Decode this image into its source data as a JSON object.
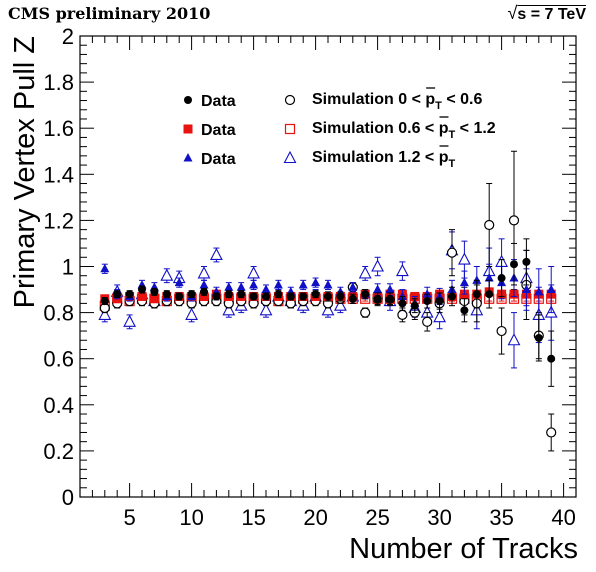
{
  "header": {
    "experiment_label": "CMS preliminary 2010",
    "energy_prefix": "s = 7 TeV",
    "sqrt_symbol": "√"
  },
  "colors": {
    "data_black": "#000000",
    "data_red": "#e8120e",
    "data_blue": "#1010c8",
    "sim_black": "#000000",
    "sim_red": "#e8120e",
    "sim_blue": "#1010c8"
  },
  "chart_data": {
    "type": "scatter",
    "title": "",
    "xlabel": "Number of Tracks",
    "ylabel": "Primary Vertex Pull Z",
    "xlim": [
      1,
      41
    ],
    "ylim": [
      0,
      2
    ],
    "x_ticks": [
      5,
      10,
      15,
      20,
      25,
      30,
      35,
      40
    ],
    "y_ticks": [
      0,
      0.2,
      0.4,
      0.6,
      0.8,
      1,
      1.2,
      1.4,
      1.6,
      1.8,
      2
    ],
    "y_tick_labels": [
      "0",
      "0.2",
      "0.4",
      "0.6",
      "0.8",
      "1",
      "1.2",
      "1.4",
      "1.6",
      "1.8",
      "2"
    ],
    "legend_position": "top-center",
    "series": [
      {
        "name": "Data",
        "marker": "filled-circle",
        "color_key": "data_black",
        "x": [
          3,
          4,
          5,
          6,
          7,
          8,
          9,
          10,
          11,
          12,
          13,
          14,
          15,
          16,
          17,
          18,
          19,
          20,
          21,
          22,
          23,
          24,
          25,
          26,
          27,
          28,
          29,
          30,
          31,
          32,
          33,
          34,
          35,
          36,
          37,
          38,
          39
        ],
        "y": [
          0.85,
          0.88,
          0.88,
          0.9,
          0.89,
          0.88,
          0.87,
          0.88,
          0.89,
          0.87,
          0.88,
          0.88,
          0.87,
          0.87,
          0.88,
          0.87,
          0.87,
          0.88,
          0.87,
          0.87,
          0.86,
          0.88,
          0.86,
          0.86,
          0.84,
          0.83,
          0.85,
          0.85,
          0.87,
          0.81,
          0.88,
          0.88,
          0.95,
          1.01,
          1.02,
          0.69,
          0.6
        ],
        "err": [
          0.015,
          0.015,
          0.015,
          0.015,
          0.015,
          0.015,
          0.015,
          0.015,
          0.015,
          0.015,
          0.015,
          0.015,
          0.015,
          0.015,
          0.015,
          0.015,
          0.015,
          0.015,
          0.02,
          0.02,
          0.02,
          0.02,
          0.025,
          0.025,
          0.03,
          0.03,
          0.03,
          0.035,
          0.04,
          0.05,
          0.06,
          0.06,
          0.08,
          0.09,
          0.1,
          0.1,
          0.12
        ]
      },
      {
        "name": "Data",
        "marker": "filled-square",
        "color_key": "data_red",
        "x": [
          3,
          4,
          5,
          6,
          7,
          8,
          9,
          10,
          11,
          12,
          13,
          14,
          15,
          16,
          17,
          18,
          19,
          20,
          21,
          22,
          23,
          24,
          25,
          26,
          27,
          28,
          29,
          30,
          31,
          32,
          33,
          34,
          35,
          36,
          37,
          38,
          39
        ],
        "y": [
          0.86,
          0.86,
          0.87,
          0.87,
          0.86,
          0.87,
          0.87,
          0.87,
          0.87,
          0.88,
          0.87,
          0.87,
          0.87,
          0.87,
          0.87,
          0.87,
          0.87,
          0.87,
          0.87,
          0.87,
          0.87,
          0.88,
          0.87,
          0.88,
          0.88,
          0.87,
          0.87,
          0.88,
          0.87,
          0.88,
          0.88,
          0.89,
          0.88,
          0.88,
          0.88,
          0.88,
          0.88
        ],
        "err": [
          0.01,
          0.01,
          0.01,
          0.01,
          0.01,
          0.01,
          0.01,
          0.01,
          0.01,
          0.01,
          0.01,
          0.01,
          0.01,
          0.01,
          0.01,
          0.01,
          0.01,
          0.01,
          0.01,
          0.01,
          0.01,
          0.01,
          0.01,
          0.01,
          0.01,
          0.01,
          0.01,
          0.01,
          0.01,
          0.01,
          0.01,
          0.01,
          0.01,
          0.01,
          0.01,
          0.01,
          0.01
        ]
      },
      {
        "name": "Data",
        "marker": "filled-triangle",
        "color_key": "data_blue",
        "x": [
          3,
          4,
          5,
          6,
          7,
          8,
          9,
          10,
          11,
          12,
          13,
          14,
          15,
          16,
          17,
          18,
          19,
          20,
          21,
          22,
          23,
          24,
          25,
          26,
          27,
          28,
          29,
          30,
          31,
          32,
          33,
          34,
          35,
          36,
          37,
          38,
          39
        ],
        "y": [
          0.99,
          0.88,
          0.87,
          0.92,
          0.91,
          0.87,
          0.93,
          0.87,
          0.92,
          0.89,
          0.91,
          0.91,
          0.92,
          0.9,
          0.92,
          0.89,
          0.92,
          0.93,
          0.92,
          0.89,
          0.91,
          0.88,
          0.9,
          0.9,
          0.87,
          0.84,
          0.88,
          0.87,
          0.9,
          0.93,
          0.94,
          0.95,
          0.93,
          0.95,
          0.9,
          0.89,
          0.9
        ],
        "err": [
          0.02,
          0.02,
          0.02,
          0.02,
          0.02,
          0.02,
          0.02,
          0.02,
          0.02,
          0.02,
          0.02,
          0.02,
          0.02,
          0.02,
          0.02,
          0.02,
          0.02,
          0.02,
          0.02,
          0.02,
          0.02,
          0.02,
          0.025,
          0.025,
          0.03,
          0.03,
          0.03,
          0.035,
          0.04,
          0.05,
          0.06,
          0.06,
          0.07,
          0.08,
          0.09,
          0.1,
          0.1
        ]
      },
      {
        "name": "Simulation 0 < p̄T < 0.6",
        "marker": "open-circle",
        "color_key": "sim_black",
        "x": [
          3,
          4,
          5,
          6,
          7,
          8,
          9,
          10,
          11,
          12,
          13,
          14,
          15,
          16,
          17,
          18,
          19,
          20,
          21,
          22,
          23,
          24,
          25,
          26,
          27,
          28,
          29,
          30,
          31,
          32,
          33,
          34,
          35,
          36,
          37,
          38,
          39
        ],
        "y": [
          0.82,
          0.84,
          0.85,
          0.85,
          0.84,
          0.85,
          0.85,
          0.84,
          0.85,
          0.85,
          0.84,
          0.85,
          0.84,
          0.85,
          0.85,
          0.84,
          0.85,
          0.85,
          0.84,
          0.86,
          0.91,
          0.8,
          0.86,
          0.86,
          0.79,
          0.8,
          0.76,
          0.84,
          1.06,
          0.85,
          0.84,
          1.18,
          0.72,
          1.2,
          0.92,
          0.7,
          0.28
        ],
        "err": [
          0.02,
          0.02,
          0.02,
          0.02,
          0.02,
          0.02,
          0.02,
          0.02,
          0.02,
          0.02,
          0.02,
          0.02,
          0.02,
          0.02,
          0.02,
          0.02,
          0.02,
          0.02,
          0.02,
          0.02,
          0.02,
          0.02,
          0.03,
          0.03,
          0.03,
          0.03,
          0.04,
          0.04,
          0.1,
          0.06,
          0.08,
          0.18,
          0.1,
          0.3,
          0.15,
          0.1,
          0.08
        ]
      },
      {
        "name": "Simulation 0.6 < p̄T < 1.2",
        "marker": "open-square",
        "color_key": "sim_red",
        "x": [
          3,
          4,
          5,
          6,
          7,
          8,
          9,
          10,
          11,
          12,
          13,
          14,
          15,
          16,
          17,
          18,
          19,
          20,
          21,
          22,
          23,
          24,
          25,
          26,
          27,
          28,
          29,
          30,
          31,
          32,
          33,
          34,
          35,
          36,
          37,
          38,
          39
        ],
        "y": [
          0.83,
          0.86,
          0.85,
          0.86,
          0.86,
          0.85,
          0.86,
          0.86,
          0.86,
          0.86,
          0.86,
          0.86,
          0.86,
          0.86,
          0.85,
          0.86,
          0.86,
          0.86,
          0.86,
          0.86,
          0.86,
          0.86,
          0.86,
          0.86,
          0.86,
          0.86,
          0.86,
          0.86,
          0.86,
          0.86,
          0.86,
          0.86,
          0.86,
          0.86,
          0.86,
          0.86,
          0.86
        ],
        "err": [
          0.01,
          0.01,
          0.01,
          0.01,
          0.01,
          0.01,
          0.01,
          0.01,
          0.01,
          0.01,
          0.01,
          0.01,
          0.01,
          0.01,
          0.01,
          0.01,
          0.01,
          0.01,
          0.01,
          0.01,
          0.01,
          0.01,
          0.01,
          0.01,
          0.01,
          0.01,
          0.01,
          0.01,
          0.01,
          0.01,
          0.01,
          0.01,
          0.01,
          0.01,
          0.01,
          0.01,
          0.01
        ]
      },
      {
        "name": "Simulation 1.2 < p̄T",
        "marker": "open-triangle",
        "color_key": "sim_blue",
        "x": [
          3,
          4,
          5,
          6,
          7,
          8,
          9,
          10,
          11,
          12,
          13,
          14,
          15,
          16,
          17,
          18,
          19,
          20,
          21,
          22,
          23,
          24,
          25,
          26,
          27,
          28,
          29,
          30,
          31,
          32,
          33,
          34,
          35,
          36,
          37,
          38,
          39
        ],
        "y": [
          0.79,
          0.89,
          0.76,
          0.88,
          0.85,
          0.96,
          0.95,
          0.79,
          0.97,
          1.05,
          0.81,
          0.83,
          0.97,
          0.81,
          0.87,
          0.85,
          0.83,
          0.87,
          0.81,
          0.83,
          0.87,
          0.97,
          1.0,
          0.85,
          0.98,
          0.82,
          0.8,
          0.78,
          1.07,
          1.03,
          0.81,
          0.98,
          1.02,
          0.68,
          0.95,
          0.79,
          0.8
        ],
        "err": [
          0.03,
          0.03,
          0.03,
          0.03,
          0.03,
          0.03,
          0.03,
          0.03,
          0.03,
          0.03,
          0.03,
          0.03,
          0.03,
          0.03,
          0.03,
          0.03,
          0.03,
          0.03,
          0.03,
          0.03,
          0.03,
          0.03,
          0.04,
          0.04,
          0.04,
          0.04,
          0.05,
          0.05,
          0.08,
          0.08,
          0.08,
          0.1,
          0.1,
          0.12,
          0.12,
          0.12,
          0.12
        ]
      }
    ],
    "legend": {
      "data_label": "Data",
      "sim1_prefix": "Simulation 0 < p",
      "sim1_suffix": " < 0.6",
      "sim2_prefix": "Simulation 0.6 < p",
      "sim2_suffix": " < 1.2",
      "sim3_prefix": "Simulation 1.2 < p",
      "pt_subscript": "T"
    }
  }
}
